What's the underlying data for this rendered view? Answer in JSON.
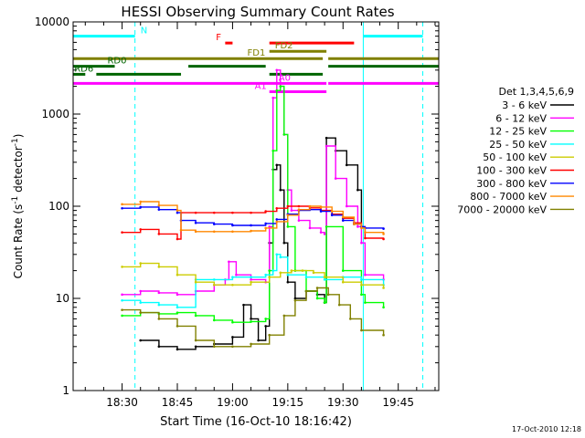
{
  "chart_data": {
    "type": "line",
    "title": "HESSI Observing Summary Count Rates",
    "xlabel": "Start Time (16-Oct-10 18:16:42)",
    "ylabel_main": "Count Rate (s",
    "ylabel_sup": "-1",
    "ylabel_rest": " detector",
    "ylabel_sup2": "-1",
    "ylabel_close": ")",
    "xlim": [
      "18:16:42",
      "19:56:00"
    ],
    "ylim": [
      1,
      10000
    ],
    "yscale": "log",
    "xticks": [
      {
        "t": "18:30",
        "label": "18:30"
      },
      {
        "t": "18:45",
        "label": "18:45"
      },
      {
        "t": "19:00",
        "label": "19:00"
      },
      {
        "t": "19:15",
        "label": "19:15"
      },
      {
        "t": "19:30",
        "label": "19:30"
      },
      {
        "t": "19:45",
        "label": "19:45"
      }
    ],
    "yticks": [
      {
        "v": 1,
        "label": "1"
      },
      {
        "v": 10,
        "label": "10"
      },
      {
        "v": 100,
        "label": "100"
      },
      {
        "v": 1000,
        "label": "1000"
      },
      {
        "v": 10000,
        "label": "10000"
      }
    ],
    "legend": {
      "title": "Det 1,3,4,5,6,9",
      "placement": "right",
      "entries": [
        {
          "label": "3 - 6 keV",
          "color": "#000000"
        },
        {
          "label": "6 - 12 keV",
          "color": "#ff00ff"
        },
        {
          "label": "12 - 25 keV",
          "color": "#00ff00"
        },
        {
          "label": "25 - 50 keV",
          "color": "#00ffff"
        },
        {
          "label": "50 - 100 keV",
          "color": "#cccc00"
        },
        {
          "label": "100 - 300 keV",
          "color": "#ff0000"
        },
        {
          "label": "300 - 800 keV",
          "color": "#0000ff"
        },
        {
          "label": "800 - 7000 keV",
          "color": "#ff8800"
        },
        {
          "label": "7000 - 20000 keV",
          "color": "#808000"
        }
      ]
    },
    "series": [
      {
        "name": "3 - 6 keV",
        "color": "#000000",
        "x": [
          "18:35:00",
          "18:40:00",
          "18:45:00",
          "18:50:00",
          "18:55:00",
          "19:00:00",
          "19:03:00",
          "19:05:00",
          "19:07:00",
          "19:09:00",
          "19:10:00",
          "19:11:00",
          "19:12:00",
          "19:13:00",
          "19:14:00",
          "19:15:00",
          "19:17:00",
          "19:20:00",
          "19:23:00",
          "19:25:00",
          "19:25:30",
          "19:28:00",
          "19:31:00",
          "19:34:00",
          "19:35:00"
        ],
        "y": [
          3.5,
          3.0,
          2.8,
          3.0,
          3.2,
          3.8,
          8.5,
          6.0,
          3.5,
          5.0,
          40,
          250,
          280,
          150,
          40,
          15,
          10,
          12,
          11,
          9,
          550,
          400,
          280,
          150,
          60
        ]
      },
      {
        "name": "6 - 12 keV",
        "color": "#ff00ff",
        "x": [
          "18:30:00",
          "18:35:00",
          "18:40:00",
          "18:45:00",
          "18:50:00",
          "18:55:00",
          "18:58:00",
          "18:59:00",
          "19:01:00",
          "19:05:00",
          "19:09:00",
          "19:10:00",
          "19:11:00",
          "19:12:00",
          "19:13:00",
          "19:14:00",
          "19:15:00",
          "19:16:00",
          "19:18:00",
          "19:21:00",
          "19:24:00",
          "19:25:00",
          "19:25:30",
          "19:28:00",
          "19:31:00",
          "19:34:00",
          "19:35:00",
          "19:36:00",
          "19:41:00"
        ],
        "y": [
          11,
          12,
          11.5,
          11,
          12,
          14,
          16,
          25,
          18,
          16,
          15,
          60,
          1500,
          3000,
          2000,
          600,
          150,
          90,
          70,
          58,
          52,
          50,
          450,
          200,
          100,
          60,
          40,
          18,
          16
        ]
      },
      {
        "name": "12 - 25 keV",
        "color": "#00ff00",
        "x": [
          "18:30:00",
          "18:35:00",
          "18:40:00",
          "18:45:00",
          "18:50:00",
          "18:55:00",
          "19:00:00",
          "19:05:00",
          "19:09:00",
          "19:10:00",
          "19:11:00",
          "19:12:00",
          "19:13:00",
          "19:14:00",
          "19:15:00",
          "19:17:00",
          "19:20:00",
          "19:23:00",
          "19:25:00",
          "19:25:30",
          "19:30:00",
          "19:35:00",
          "19:36:00",
          "19:41:00"
        ],
        "y": [
          6.5,
          7,
          6.8,
          7,
          6.5,
          5.8,
          5.5,
          5.6,
          6,
          20,
          400,
          1800,
          2000,
          600,
          60,
          20,
          12,
          10,
          9,
          60,
          20,
          11,
          9,
          8
        ]
      },
      {
        "name": "25 - 50 keV",
        "color": "#00ffff",
        "x": [
          "18:30:00",
          "18:35:00",
          "18:40:00",
          "18:45:00",
          "18:50:00",
          "18:55:00",
          "19:00:00",
          "19:05:00",
          "19:09:00",
          "19:11:00",
          "19:12:00",
          "19:13:00",
          "19:15:00",
          "19:20:00",
          "19:25:00",
          "19:30:00",
          "19:35:00",
          "19:41:00"
        ],
        "y": [
          9.5,
          9,
          8.5,
          8,
          16,
          16,
          17,
          17,
          18,
          20,
          30,
          28,
          18,
          17,
          16,
          17,
          16,
          14
        ]
      },
      {
        "name": "50 - 100 keV",
        "color": "#cccc00",
        "x": [
          "18:30:00",
          "18:35:00",
          "18:40:00",
          "18:45:00",
          "18:50:00",
          "18:55:00",
          "19:00:00",
          "19:05:00",
          "19:10:00",
          "19:13:00",
          "19:16:00",
          "19:19:00",
          "19:22:00",
          "19:25:00",
          "19:30:00",
          "19:35:00",
          "19:41:00"
        ],
        "y": [
          22,
          24,
          22,
          18,
          15,
          14,
          14,
          15,
          17,
          19,
          20,
          20,
          19,
          17,
          15,
          14,
          13
        ]
      },
      {
        "name": "100 - 300 keV",
        "color": "#ff0000",
        "x": [
          "18:30:00",
          "18:35:00",
          "18:40:00",
          "18:45:00",
          "18:46:00",
          "18:50:00",
          "18:55:00",
          "19:00:00",
          "19:05:00",
          "19:09:00",
          "19:12:00",
          "19:15:00",
          "19:18:00",
          "19:21:00",
          "19:24:00",
          "19:27:00",
          "19:30:00",
          "19:33:00",
          "19:35:00",
          "19:36:00",
          "19:41:00"
        ],
        "y": [
          52,
          56,
          50,
          44,
          85,
          85,
          85,
          85,
          85,
          88,
          95,
          100,
          100,
          96,
          90,
          82,
          74,
          66,
          60,
          45,
          44
        ]
      },
      {
        "name": "300 - 800 keV",
        "color": "#0000ff",
        "x": [
          "18:30:00",
          "18:35:00",
          "18:40:00",
          "18:45:00",
          "18:46:00",
          "18:50:00",
          "18:55:00",
          "19:00:00",
          "19:05:00",
          "19:09:00",
          "19:12:00",
          "19:15:00",
          "19:18:00",
          "19:21:00",
          "19:24:00",
          "19:27:00",
          "19:30:00",
          "19:33:00",
          "19:35:00",
          "19:36:00",
          "19:41:00"
        ],
        "y": [
          95,
          98,
          92,
          85,
          70,
          66,
          64,
          62,
          62,
          65,
          72,
          82,
          90,
          92,
          88,
          80,
          70,
          64,
          60,
          58,
          57
        ]
      },
      {
        "name": "800 - 7000 keV",
        "color": "#ff8800",
        "x": [
          "18:30:00",
          "18:35:00",
          "18:40:00",
          "18:45:00",
          "18:46:00",
          "18:50:00",
          "18:55:00",
          "19:00:00",
          "19:05:00",
          "19:09:00",
          "19:12:00",
          "19:15:00",
          "19:18:00",
          "19:21:00",
          "19:24:00",
          "19:27:00",
          "19:30:00",
          "19:33:00",
          "19:35:00",
          "19:36:00",
          "19:41:00"
        ],
        "y": [
          105,
          112,
          102,
          90,
          55,
          53,
          53,
          53,
          54,
          58,
          68,
          80,
          92,
          100,
          98,
          88,
          76,
          64,
          58,
          52,
          50
        ]
      },
      {
        "name": "7000 - 20000 keV",
        "color": "#808000",
        "x": [
          "18:30:00",
          "18:35:00",
          "18:40:00",
          "18:45:00",
          "18:50:00",
          "18:55:00",
          "19:00:00",
          "19:05:00",
          "19:10:00",
          "19:14:00",
          "19:17:00",
          "19:20:00",
          "19:23:00",
          "19:26:00",
          "19:29:00",
          "19:32:00",
          "19:35:00",
          "19:41:00"
        ],
        "y": [
          7.5,
          7,
          6,
          5,
          3.5,
          3,
          3,
          3.2,
          4,
          6.5,
          9.5,
          12,
          13,
          11,
          8.5,
          6,
          4.5,
          4
        ]
      }
    ],
    "vlines": [
      {
        "t": "18:16:42",
        "color": "#00ffff",
        "style": "solid"
      },
      {
        "t": "18:33:30",
        "color": "#00ffff",
        "style": "dashed"
      },
      {
        "t": "19:35:30",
        "color": "#00ffff",
        "style": "solid"
      },
      {
        "t": "19:51:40",
        "color": "#00ffff",
        "style": "dashed"
      }
    ],
    "flag_bars": [
      {
        "label": "N",
        "color": "#00ffff",
        "y": 7000,
        "segments": [
          [
            "18:16:42",
            "18:33:30"
          ],
          [
            "19:35:30",
            "19:51:40"
          ]
        ],
        "label_t": "18:35:00"
      },
      {
        "label": "F",
        "color": "#ff0000",
        "y": 5900,
        "segments": [
          [
            "18:58:00",
            "19:00:00"
          ],
          [
            "19:10:00",
            "19:33:00"
          ]
        ],
        "label_t": "18:55:30"
      },
      {
        "label": "FD1",
        "color": "#808000",
        "y": 4000,
        "segments": [
          [
            "18:16:42",
            "19:24:30"
          ],
          [
            "19:26:00",
            "19:56:00"
          ]
        ],
        "label_t": "19:04:00"
      },
      {
        "label": "FD2",
        "color": "#808000",
        "y": 4800,
        "segments": [
          [
            "19:10:00",
            "19:25:30"
          ]
        ],
        "label_t": "19:11:30"
      },
      {
        "label": "RD0",
        "color": "#006400",
        "y": 3300,
        "segments": [
          [
            "18:16:42",
            "18:28:00"
          ],
          [
            "18:48:00",
            "19:09:00"
          ],
          [
            "19:26:00",
            "19:56:00"
          ]
        ],
        "label_t": "18:26:00"
      },
      {
        "label": "RD6",
        "color": "#006400",
        "y": 2700,
        "segments": [
          [
            "18:16:42",
            "18:20:00"
          ],
          [
            "18:23:00",
            "18:46:00"
          ],
          [
            "19:10:00",
            "19:24:30"
          ]
        ],
        "label_t": "18:17:00"
      },
      {
        "label": "A0",
        "color": "#ff00ff",
        "y": 2150,
        "segments": [
          [
            "18:16:42",
            "19:25:30"
          ],
          [
            "19:26:00",
            "19:56:00"
          ]
        ],
        "label_t": "19:12:30"
      },
      {
        "label": "A1",
        "color": "#ff00ff",
        "y": 1750,
        "segments": [
          [
            "19:10:00",
            "19:25:30"
          ]
        ],
        "label_t": "19:06:00"
      }
    ],
    "timestamp": "17-Oct-2010 12:18"
  }
}
